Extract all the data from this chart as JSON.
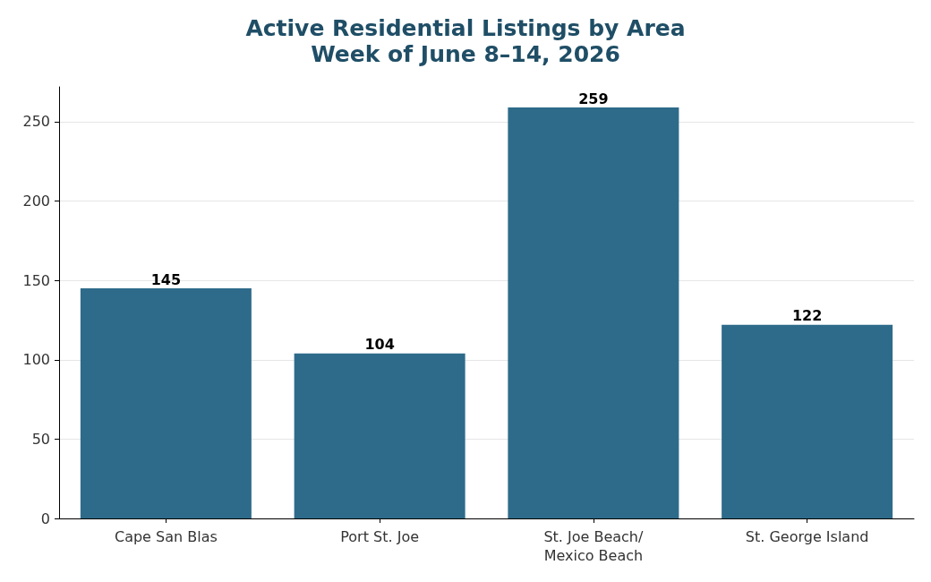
{
  "chart_data": {
    "type": "bar",
    "title": "Active Residential Listings by Area",
    "subtitle": "Week of June 8–14, 2026",
    "categories": [
      "Cape San Blas",
      "Port St. Joe",
      "St. Joe Beach/\nMexico Beach",
      "St. George Island"
    ],
    "values": [
      145,
      104,
      259,
      122
    ],
    "color": "#2e6b8a",
    "data_labels": true,
    "ylim": [
      0,
      272
    ],
    "yticks": [
      0,
      50,
      100,
      150,
      200,
      250
    ],
    "grid": "y"
  }
}
